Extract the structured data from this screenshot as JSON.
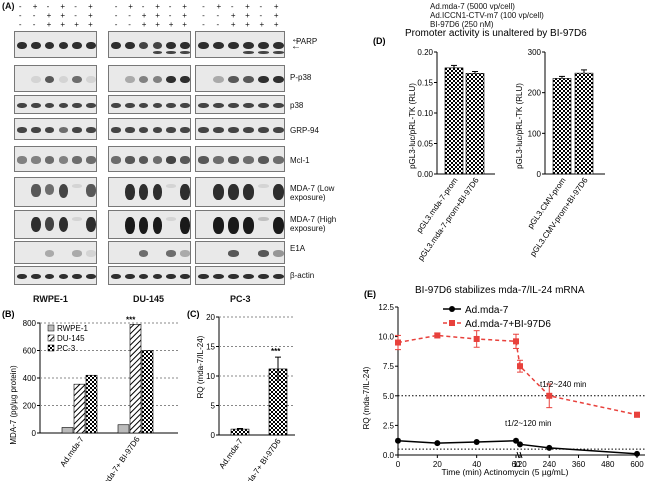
{
  "panel_A": {
    "letter": "(A)",
    "treatments": [
      {
        "label": "Ad.mda-7 (5000 vp/cell)",
        "signs": [
          "-",
          "+",
          "-",
          "+",
          "-",
          "+"
        ]
      },
      {
        "label": "Ad.ICCN1-CTV-m7 (100 vp/cell)",
        "signs": [
          "-",
          "-",
          "+",
          "+",
          "-",
          "+"
        ]
      },
      {
        "label": "BI-97D6 (250 nM)",
        "signs": [
          "-",
          "-",
          "+",
          "+",
          "+",
          "+"
        ]
      }
    ],
    "blot_labels": [
      "PARP",
      "P-p38",
      "p38",
      "GRP-94",
      "Mcl-1",
      "MDA-7 (Low exposure)",
      "MDA-7 (High exposure)",
      "E1A",
      "β-actin"
    ],
    "cell_lines": [
      "RWPE-1",
      "DU-145",
      "PC-3"
    ]
  },
  "panel_B": {
    "letter": "(B)",
    "legend": [
      "RWPE-1",
      "DU-145",
      "PC-3"
    ],
    "significance": "***",
    "chart_data": {
      "type": "bar",
      "ylabel": "MDA-7 (pg/µg protein)",
      "categories": [
        "Ad.mda-7",
        "Ad.mda-7+ BI-97D6"
      ],
      "ylim": [
        0,
        800
      ],
      "yticks": [
        "0",
        "200",
        "400",
        "600",
        "800"
      ],
      "series": [
        {
          "name": "RWPE-1",
          "values": [
            40,
            60
          ]
        },
        {
          "name": "DU-145",
          "values": [
            355,
            790
          ]
        },
        {
          "name": "PC-3",
          "values": [
            420,
            600
          ]
        }
      ]
    }
  },
  "panel_C": {
    "letter": "(C)",
    "significance": "***",
    "chart_data": {
      "type": "bar",
      "ylabel": "RQ (mda-7/IL-24)",
      "categories": [
        "Ad.mda-7",
        "Ad.mda-7+ BI-97D6"
      ],
      "ylim": [
        0,
        20
      ],
      "yticks": [
        "0",
        "5",
        "10",
        "15",
        "20"
      ],
      "values": [
        1.0,
        11.2
      ],
      "errors": [
        0.1,
        2.0
      ]
    }
  },
  "panel_D": {
    "letter": "(D)",
    "title": "Promoter activity is unaltered by BI-97D6",
    "chart_data": [
      {
        "type": "bar",
        "ylabel": "pGL3-luc/pRL-TK (RLU)",
        "categories": [
          "pGL3.mda-7-prom",
          "pGL3.mda-7-prom+BI-97D6"
        ],
        "values": [
          0.174,
          0.165
        ],
        "errors": [
          0.004,
          0.003
        ],
        "ylim": [
          0,
          0.2
        ],
        "yticks": [
          "0.00",
          "0.05",
          "0.10",
          "0.15",
          "0.20"
        ]
      },
      {
        "type": "bar",
        "ylabel": "pGL3-luc/pRL-TK (RLU)",
        "categories": [
          "pGL3.CMV-prom",
          "pGL3.CMV-prom+BI-97D6"
        ],
        "values": [
          235,
          248
        ],
        "errors": [
          5,
          8
        ],
        "ylim": [
          0,
          300
        ],
        "yticks": [
          "0",
          "100",
          "200",
          "300"
        ]
      }
    ]
  },
  "panel_E": {
    "letter": "(E)",
    "title": "BI-97D6 stabilizes mda-7/IL-24 mRNA",
    "annot_240": "t1/2~240 min",
    "annot_120": "t1/2~120 min",
    "chart_data": {
      "type": "line",
      "xlabel": "Time (min) Actinomycin (5 µg/mL)",
      "ylabel": "RQ (mda-7/IL-24)",
      "x_ticks": [
        "0",
        "20",
        "40",
        "60",
        "120",
        "240",
        "360",
        "480",
        "600"
      ],
      "ylim": [
        0,
        12.5
      ],
      "yticks": [
        "0.0",
        "2.5",
        "5.0",
        "7.5",
        "10.0",
        "12.5"
      ],
      "series": [
        {
          "name": "Ad.mda-7",
          "x": [
            0,
            20,
            40,
            60,
            120,
            240,
            600
          ],
          "y": [
            1.2,
            1.0,
            1.1,
            1.2,
            0.9,
            0.6,
            0.1
          ],
          "errors": [
            0,
            0,
            0,
            0,
            0,
            0,
            0
          ]
        },
        {
          "name": "Ad.mda-7+BI-97D6",
          "x": [
            0,
            20,
            40,
            60,
            120,
            240,
            600
          ],
          "y": [
            9.5,
            10.1,
            9.8,
            9.6,
            7.5,
            5.0,
            3.4
          ],
          "errors": [
            0.6,
            0.2,
            0.7,
            0.6,
            0.5,
            1.0,
            0.2
          ]
        }
      ],
      "ref_lines": [
        5.0,
        0.5
      ]
    }
  }
}
